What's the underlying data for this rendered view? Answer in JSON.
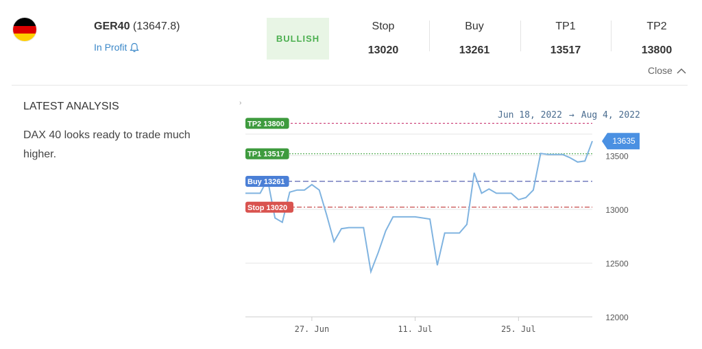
{
  "header": {
    "symbol": "GER40",
    "price": "(13647.8)",
    "status": "In Profit",
    "sentiment": "BULLISH",
    "levels": [
      {
        "label": "Stop",
        "value": "13020"
      },
      {
        "label": "Buy",
        "value": "13261"
      },
      {
        "label": "TP1",
        "value": "13517"
      },
      {
        "label": "TP2",
        "value": "13800"
      }
    ],
    "close_label": "Close"
  },
  "analysis": {
    "title": "LATEST ANALYSIS",
    "text": "DAX 40 looks ready to trade much higher."
  },
  "chart_data": {
    "type": "line",
    "range": {
      "from": "Jun 18, 2022",
      "separator": "→",
      "to": "Aug 4, 2022"
    },
    "ylim": [
      12000,
      13700
    ],
    "y_ticks": [
      {
        "value": 12000,
        "label": "12000"
      },
      {
        "value": 12500,
        "label": "12500"
      },
      {
        "value": 13000,
        "label": "13000"
      },
      {
        "value": 13500,
        "label": "13500"
      }
    ],
    "x_ticks": [
      {
        "date": "2022-06-27",
        "label": "27. Jun"
      },
      {
        "date": "2022-07-11",
        "label": "11. Jul"
      },
      {
        "date": "2022-07-25",
        "label": "25. Jul"
      }
    ],
    "last_value_label": "13635",
    "levels": [
      {
        "name": "TP2",
        "label": "TP2 13800",
        "value": 13800,
        "color": "#c2185b",
        "badge": "#3e9b3e"
      },
      {
        "name": "TP1",
        "label": "TP1 13517",
        "value": 13517,
        "color": "#2e9b2e",
        "badge": "#3e9b3e"
      },
      {
        "name": "Buy",
        "label": "Buy 13261",
        "value": 13261,
        "color": "#2b3a9e",
        "badge": "#4a7fd6"
      },
      {
        "name": "Stop",
        "label": "Stop 13020",
        "value": 13020,
        "color": "#b71c1c",
        "badge": "#d9534f"
      }
    ],
    "series": [
      {
        "color": "#7fb3e0",
        "points": [
          [
            "2022-06-18",
            13150
          ],
          [
            "2022-06-19",
            13150
          ],
          [
            "2022-06-20",
            13150
          ],
          [
            "2022-06-21",
            13280
          ],
          [
            "2022-06-22",
            12920
          ],
          [
            "2022-06-23",
            12880
          ],
          [
            "2022-06-24",
            13160
          ],
          [
            "2022-06-25",
            13180
          ],
          [
            "2022-06-26",
            13180
          ],
          [
            "2022-06-27",
            13230
          ],
          [
            "2022-06-28",
            13180
          ],
          [
            "2022-06-29",
            12950
          ],
          [
            "2022-06-30",
            12700
          ],
          [
            "2022-07-01",
            12820
          ],
          [
            "2022-07-02",
            12830
          ],
          [
            "2022-07-03",
            12830
          ],
          [
            "2022-07-04",
            12830
          ],
          [
            "2022-07-05",
            12420
          ],
          [
            "2022-07-06",
            12600
          ],
          [
            "2022-07-07",
            12800
          ],
          [
            "2022-07-08",
            12930
          ],
          [
            "2022-07-09",
            12930
          ],
          [
            "2022-07-10",
            12930
          ],
          [
            "2022-07-11",
            12930
          ],
          [
            "2022-07-12",
            12920
          ],
          [
            "2022-07-13",
            12910
          ],
          [
            "2022-07-14",
            12480
          ],
          [
            "2022-07-15",
            12780
          ],
          [
            "2022-07-16",
            12780
          ],
          [
            "2022-07-17",
            12780
          ],
          [
            "2022-07-18",
            12860
          ],
          [
            "2022-07-19",
            13340
          ],
          [
            "2022-07-20",
            13150
          ],
          [
            "2022-07-21",
            13190
          ],
          [
            "2022-07-22",
            13150
          ],
          [
            "2022-07-23",
            13150
          ],
          [
            "2022-07-24",
            13150
          ],
          [
            "2022-07-25",
            13090
          ],
          [
            "2022-07-26",
            13110
          ],
          [
            "2022-07-27",
            13180
          ],
          [
            "2022-07-28",
            13520
          ],
          [
            "2022-07-29",
            13510
          ],
          [
            "2022-07-30",
            13510
          ],
          [
            "2022-07-31",
            13510
          ],
          [
            "2022-08-01",
            13480
          ],
          [
            "2022-08-02",
            13440
          ],
          [
            "2022-08-03",
            13450
          ],
          [
            "2022-08-04",
            13635
          ]
        ]
      }
    ]
  }
}
